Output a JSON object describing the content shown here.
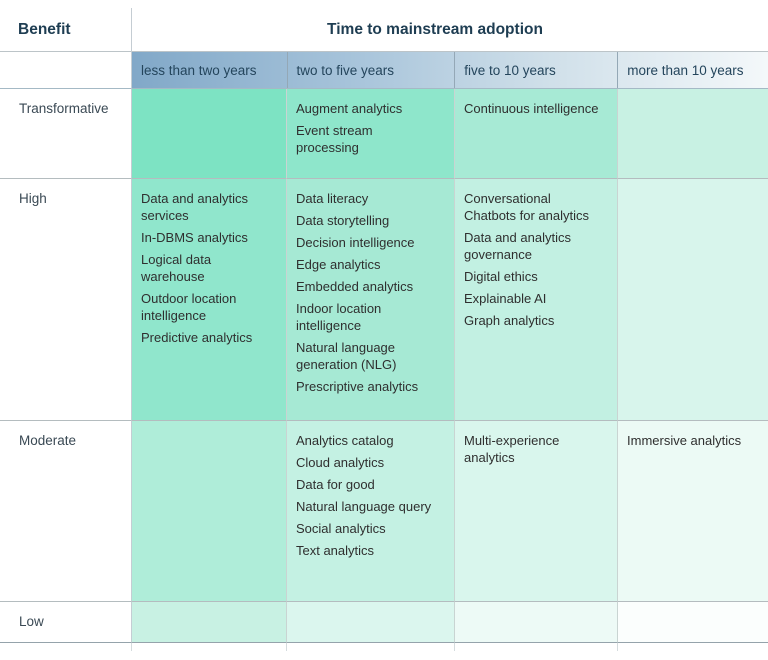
{
  "chart_data": {
    "type": "table",
    "title": "Time to mainstream adoption",
    "row_axis_label": "Benefit",
    "columns": [
      "less than two years",
      "two to five years",
      "five to 10 years",
      "more than 10 years"
    ],
    "rows": [
      {
        "benefit": "Transformative",
        "cells": [
          [],
          [
            "Augment analytics",
            "Event stream processing"
          ],
          [
            "Continuous intelligence"
          ],
          []
        ]
      },
      {
        "benefit": "High",
        "cells": [
          [
            "Data and analytics services",
            "In-DBMS analytics",
            "Logical data warehouse",
            "Outdoor location intelligence",
            "Predictive analytics"
          ],
          [
            "Data literacy",
            "Data storytelling",
            "Decision intelligence",
            "Edge analytics",
            "Embedded analytics",
            "Indoor location intelligence",
            "Natural language generation (NLG)",
            "Prescriptive analytics"
          ],
          [
            "Conversational Chatbots for analytics",
            "Data and analytics governance",
            "Digital ethics",
            "Explainable AI",
            "Graph analytics"
          ],
          []
        ]
      },
      {
        "benefit": "Moderate",
        "cells": [
          [],
          [
            "Analytics catalog",
            "Cloud analytics",
            "Data for good",
            "Natural language query",
            "Social analytics",
            "Text analytics"
          ],
          [
            "Multi-experience analytics"
          ],
          [
            "Immersive analytics"
          ]
        ]
      },
      {
        "benefit": "Low",
        "cells": [
          [],
          [],
          [],
          []
        ]
      }
    ],
    "layout": {
      "grid": "4x4 matrix",
      "legend_position": "none"
    },
    "colors": {
      "title_text": "#1e3d52",
      "column_header_text": "#24455c",
      "row_label_text": "#3a4954",
      "cell_text": "#2f2f2f",
      "header_gradient": [
        "#81a8c8",
        "#f4f8fa"
      ],
      "cell_colors": [
        [
          "#7de3c3",
          "#8ee6cb",
          "#a7ead5",
          "#c8f1e3"
        ],
        [
          "#90e6cc",
          "#a6e9d4",
          "#c2f0e2",
          "#d8f5ec"
        ],
        [
          "#afedd9",
          "#c4f1e3",
          "#d9f6ed",
          "#ecfaf5"
        ],
        [
          "#c8f1e3",
          "#dbf6ee",
          "#edfaf6",
          "#fbfefd"
        ]
      ]
    }
  }
}
